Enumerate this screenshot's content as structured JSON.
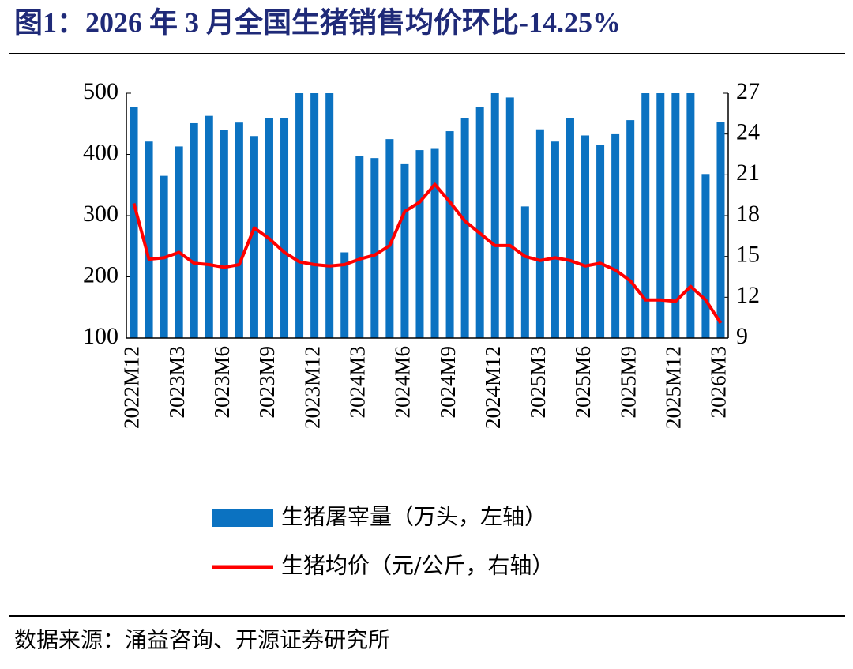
{
  "chart_data": {
    "type": "bar-line",
    "title": "图1：2026 年 3 月全国生猪销售均价环比-14.25%",
    "source": "数据来源：涌益咨询、开源证券研究所",
    "categories": [
      "2022M12",
      null,
      null,
      "2023M3",
      null,
      null,
      "2023M6",
      null,
      null,
      "2023M9",
      null,
      null,
      "2023M12",
      null,
      null,
      "2024M3",
      null,
      null,
      "2024M6",
      null,
      null,
      "2024M9",
      null,
      null,
      "2024M12",
      null,
      null,
      "2025M3",
      null,
      null,
      "2025M6",
      null,
      null,
      "2025M9",
      null,
      null,
      "2025M12",
      null,
      null,
      "2026M3"
    ],
    "series": [
      {
        "name": "生猪屠宰量（万头，左轴）",
        "type": "bar",
        "color": "#0b72c1",
        "values": [
          477,
          421,
          365,
          413,
          451,
          463,
          440,
          452,
          430,
          459,
          460,
          500,
          500,
          500,
          240,
          398,
          394,
          425,
          384,
          407,
          409,
          438,
          459,
          477,
          500,
          493,
          315,
          441,
          421,
          459,
          431,
          415,
          433,
          456,
          500,
          500,
          500,
          500,
          368,
          453
        ]
      },
      {
        "name": "生猪均价（元/公斤，右轴）",
        "type": "line",
        "axis": "y2",
        "color": "#ff0000",
        "values": [
          18.9,
          14.8,
          14.9,
          15.3,
          14.5,
          14.4,
          14.2,
          14.4,
          17.1,
          16.3,
          15.3,
          14.6,
          14.4,
          14.3,
          14.4,
          14.8,
          15.1,
          15.8,
          18.3,
          19.0,
          20.3,
          19.0,
          17.6,
          16.7,
          15.8,
          15.8,
          15.0,
          14.7,
          14.9,
          14.7,
          14.3,
          14.5,
          14.0,
          13.2,
          11.8,
          11.8,
          11.7,
          12.8,
          11.8,
          10.1
        ]
      }
    ],
    "ylim": [
      100,
      500
    ],
    "yticks": [
      100,
      200,
      300,
      400,
      500
    ],
    "y2lim": [
      9,
      27
    ],
    "y2ticks": [
      9,
      12,
      15,
      18,
      21,
      24,
      27
    ],
    "grid": false
  }
}
